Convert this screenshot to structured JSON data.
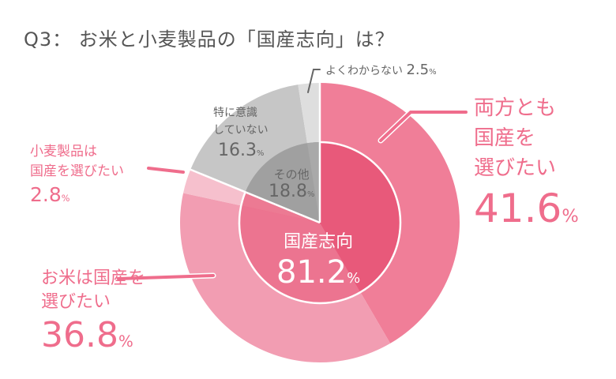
{
  "title": "Q3： お米と小麦製品の「国産志向」は？",
  "chart_data": {
    "type": "pie",
    "title": "Q3： お米と小麦製品の「国産志向」は？",
    "unit": "%",
    "outer": [
      {
        "label": "両方とも国産を選びたい",
        "value": 41.6,
        "color": "#f07e98"
      },
      {
        "label": "お米は国産を選びたい",
        "value": 36.8,
        "color": "#f29db2"
      },
      {
        "label": "小麦製品は国産を選びたい",
        "value": 2.8,
        "color": "#f6c0cd"
      },
      {
        "label": "特に意識していない",
        "value": 16.3,
        "color": "#c6c6c6"
      },
      {
        "label": "よくわからない",
        "value": 2.5,
        "color": "#dedede"
      }
    ],
    "inner": [
      {
        "label": "国産志向",
        "value": 81.2,
        "color": "#ea5c7c"
      },
      {
        "label": "その他",
        "value": 18.8,
        "color": "#a2a2a2"
      }
    ]
  },
  "labels": {
    "both_1": "両方とも",
    "both_2": "国産を",
    "both_3": "選びたい",
    "both_v": "41.6",
    "rice_1": "お米は国産を",
    "rice_2": "選びたい",
    "rice_v": "36.8",
    "wheat_1": "小麦製品は",
    "wheat_2": "国産を選びたい",
    "wheat_v": "2.8",
    "none_1": "特に意識",
    "none_2": "していない",
    "none_v": "16.3",
    "unk": "よくわからない",
    "unk_v": "2.5",
    "other": "その他",
    "other_v": "18.8",
    "dom": "国産志向",
    "dom_v": "81.2",
    "pct": "%"
  }
}
